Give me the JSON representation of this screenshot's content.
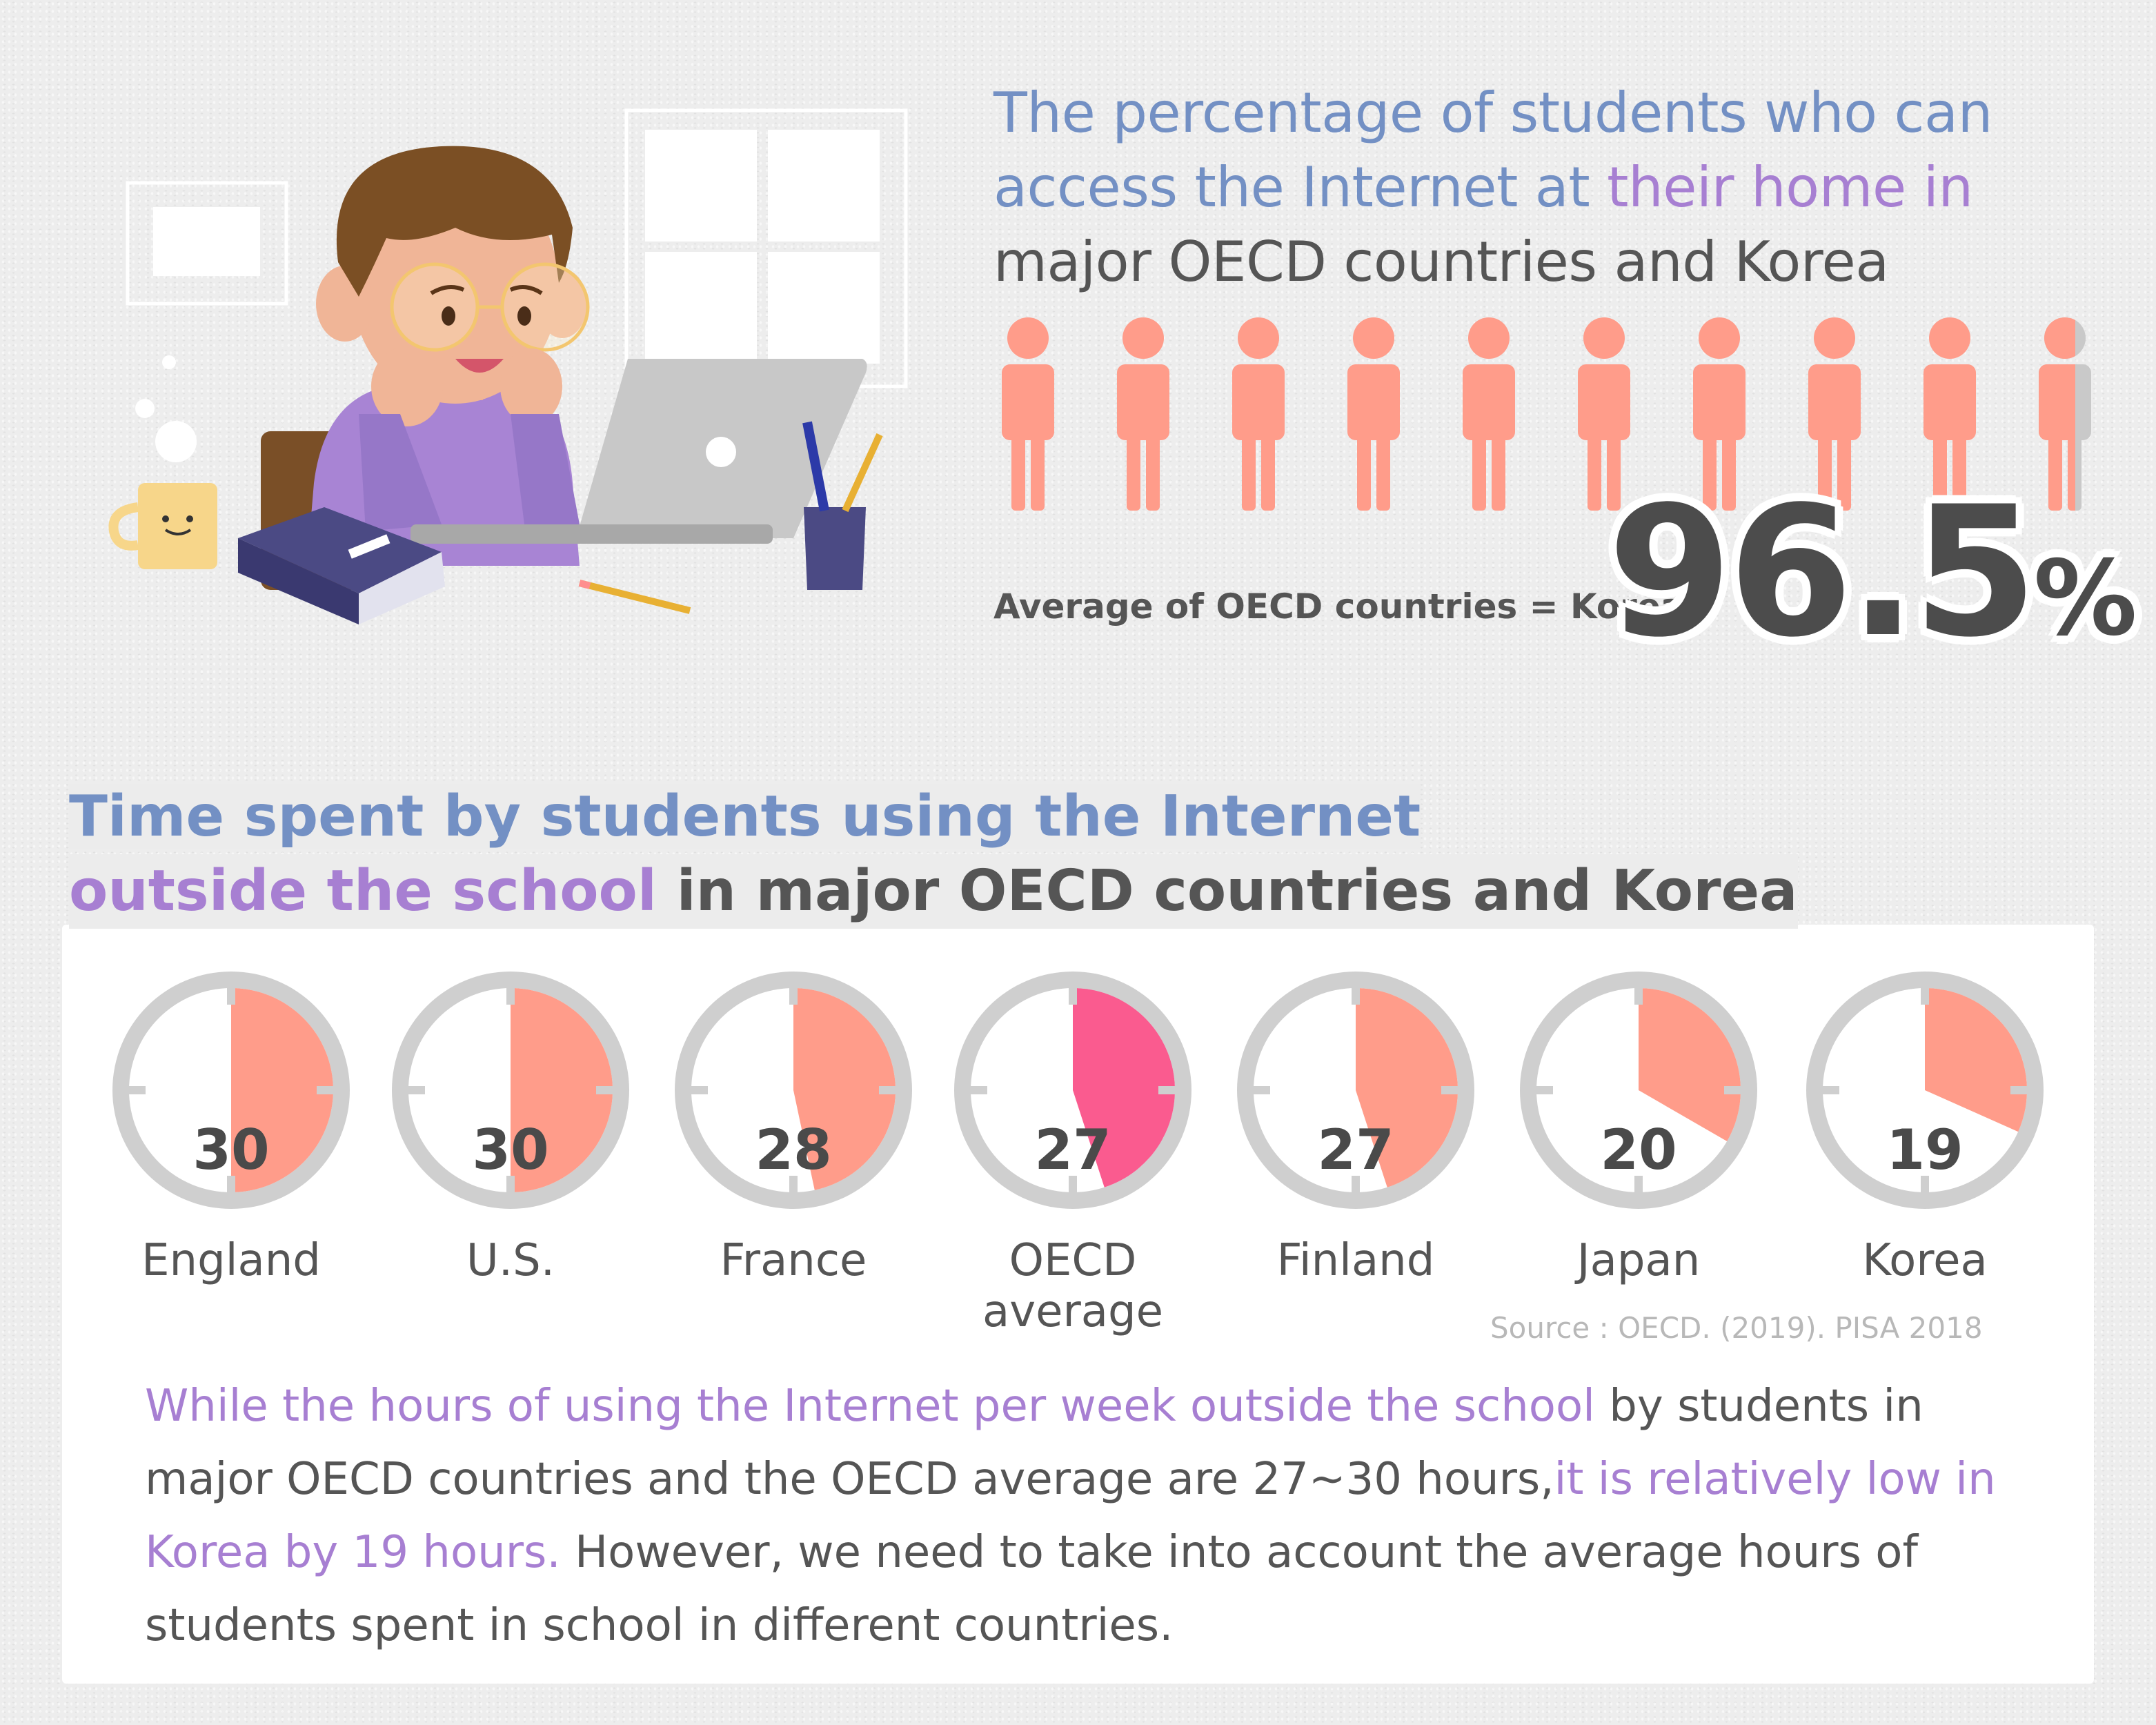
{
  "headline1": {
    "part1": "The percentage of students who can access the Internet at",
    "part2": "their home in",
    "part3": "major OECD countries and Korea"
  },
  "access": {
    "average_label": "Average of OECD countries = Korea",
    "value": "96.5",
    "unit": "%",
    "fill_fraction": 0.965
  },
  "headline2": {
    "part1": "Time spent by students using the Internet",
    "part2": "outside the school",
    "part3": "in major OECD countries and Korea"
  },
  "chart_data": {
    "type": "clock",
    "unit": "hours per week",
    "categories": [
      "England",
      "U.S.",
      "France",
      "OECD average",
      "Finland",
      "Japan",
      "Korea"
    ],
    "values": [
      30,
      30,
      28,
      27,
      27,
      20,
      19
    ],
    "highlight": "OECD average"
  },
  "source": "Source : OECD. (2019). PISA 2018",
  "paragraph": {
    "part1": "While the hours of using the Internet per week outside the school",
    "part2": " by students in major OECD countries and the OECD average are 27~30 hours,",
    "part3": "it is relatively low in Korea by 19 hours.",
    "part4": " However, we need to take into account the average hours of students spent in school in different countries."
  },
  "colors": {
    "blue": "#7390c4",
    "purple": "#a77fd2",
    "salmon": "#ff9c8a",
    "pink": "#fa5b8f",
    "gray": "#cfcfcf",
    "dark": "#555555"
  }
}
